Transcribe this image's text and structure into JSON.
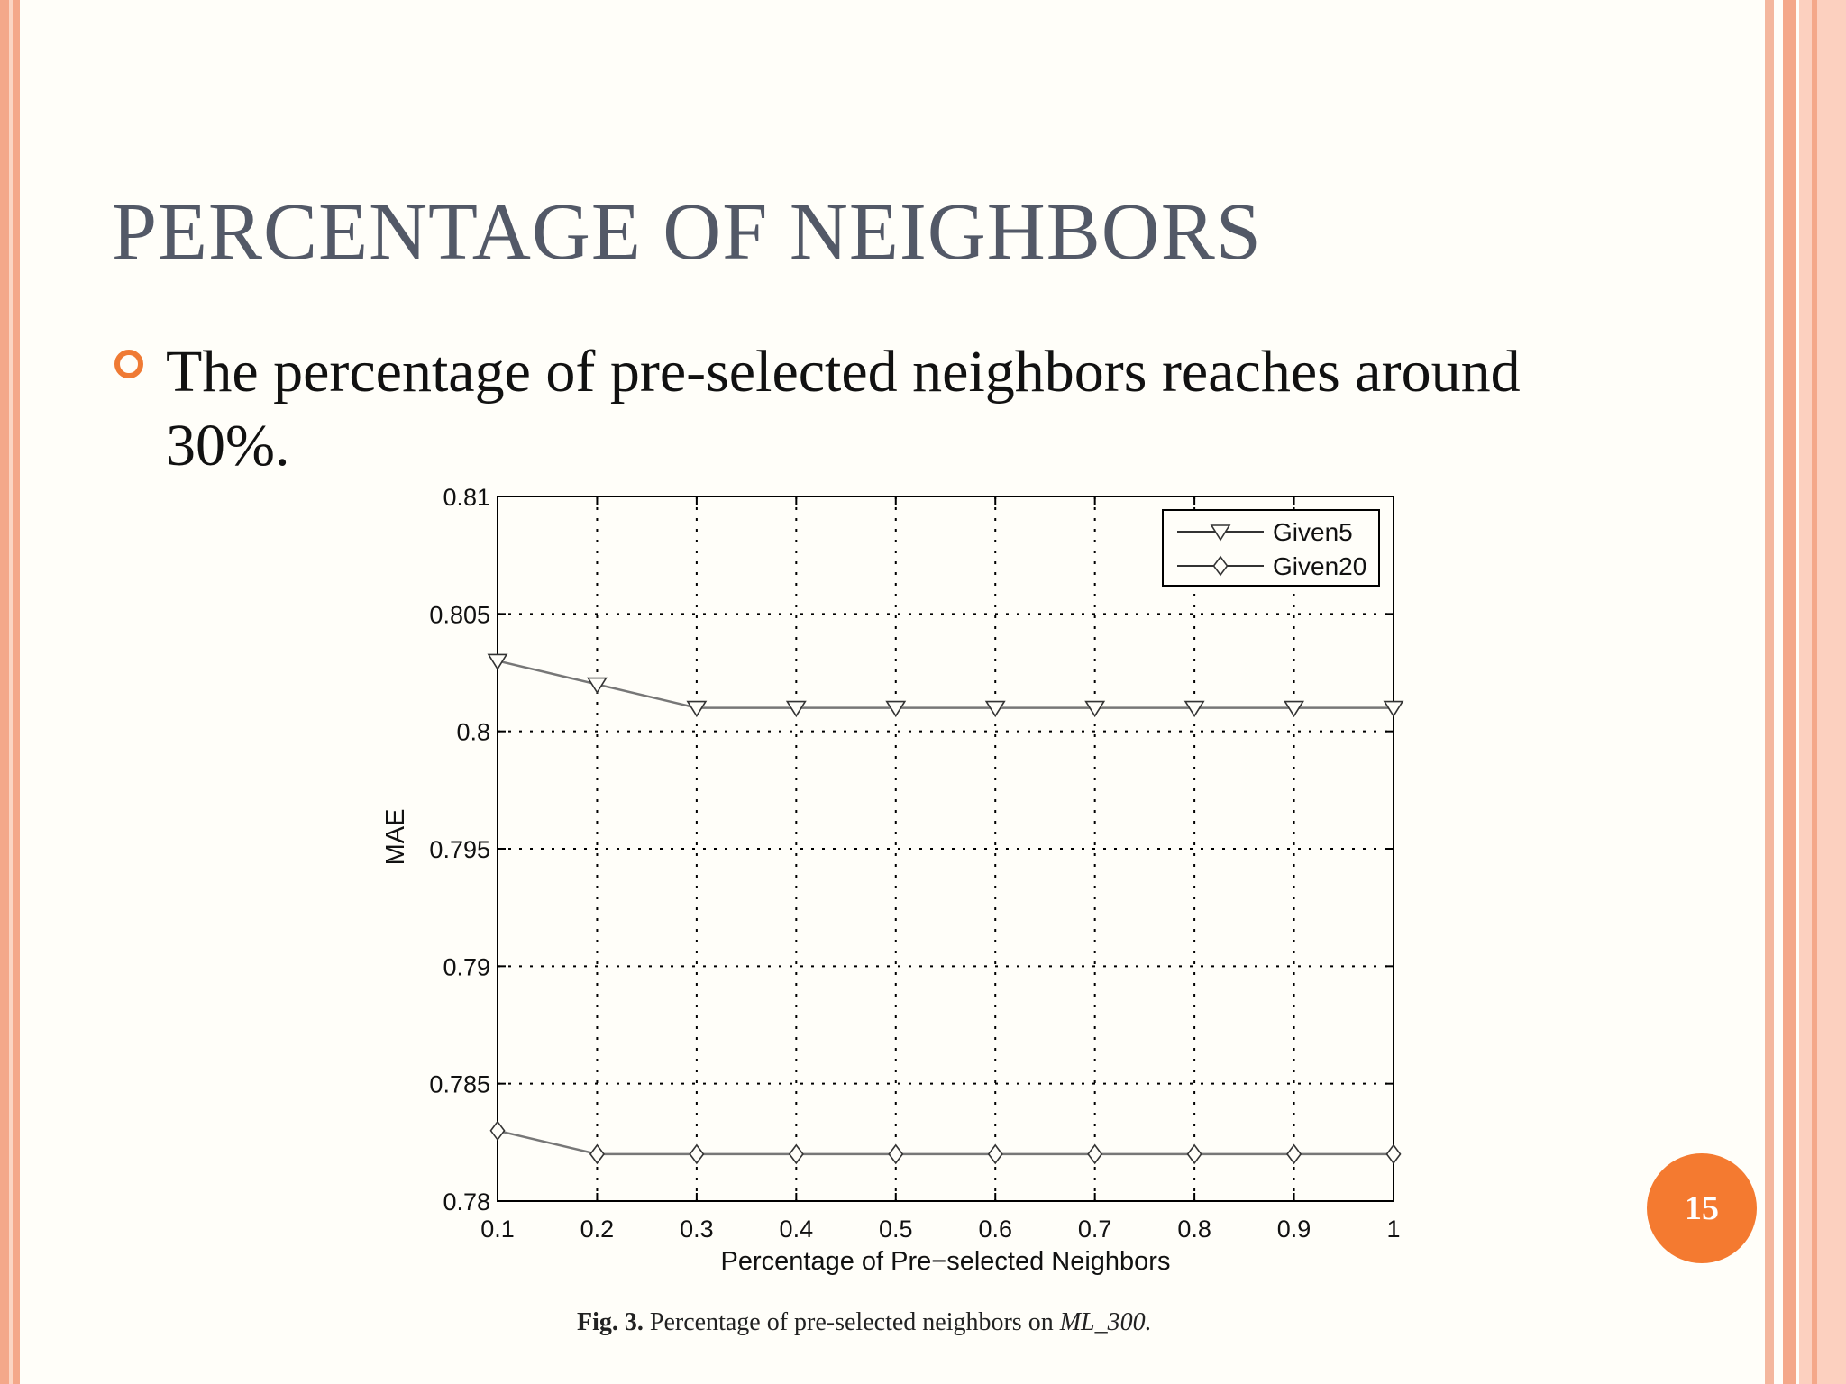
{
  "slide": {
    "title": "PERCENTAGE OF NEIGHBORS",
    "bullet": "The percentage of pre-selected neighbors reaches around 30%.",
    "page_number": "15"
  },
  "caption": {
    "label": "Fig. 3.",
    "text": "Percentage of pre-selected neighbors on ",
    "dataset": "ML_300."
  },
  "colors": {
    "accent": "#f47a30",
    "title": "#535967",
    "border": "#f4a88a"
  },
  "chart_data": {
    "type": "line",
    "xlabel": "Percentage of Pre−selected Neighbors",
    "ylabel": "MAE",
    "xlim": [
      0.1,
      1
    ],
    "ylim": [
      0.78,
      0.81
    ],
    "x": [
      0.1,
      0.2,
      0.3,
      0.4,
      0.5,
      0.6,
      0.7,
      0.8,
      0.9,
      1
    ],
    "xticks": [
      "0.1",
      "0.2",
      "0.3",
      "0.4",
      "0.5",
      "0.6",
      "0.7",
      "0.8",
      "0.9",
      "1"
    ],
    "yticks": [
      {
        "v": 0.78,
        "label": "0.78"
      },
      {
        "v": 0.785,
        "label": "0.785"
      },
      {
        "v": 0.79,
        "label": "0.79"
      },
      {
        "v": 0.795,
        "label": "0.795"
      },
      {
        "v": 0.8,
        "label": "0.8"
      },
      {
        "v": 0.805,
        "label": "0.805"
      },
      {
        "v": 0.81,
        "label": "0.81"
      }
    ],
    "grid": true,
    "legend_position": "top-right",
    "series": [
      {
        "name": "Given5",
        "marker": "triangle-down",
        "values": [
          0.803,
          0.802,
          0.801,
          0.801,
          0.801,
          0.801,
          0.801,
          0.801,
          0.801,
          0.801
        ]
      },
      {
        "name": "Given20",
        "marker": "diamond",
        "values": [
          0.783,
          0.782,
          0.782,
          0.782,
          0.782,
          0.782,
          0.782,
          0.782,
          0.782,
          0.782
        ]
      }
    ]
  }
}
